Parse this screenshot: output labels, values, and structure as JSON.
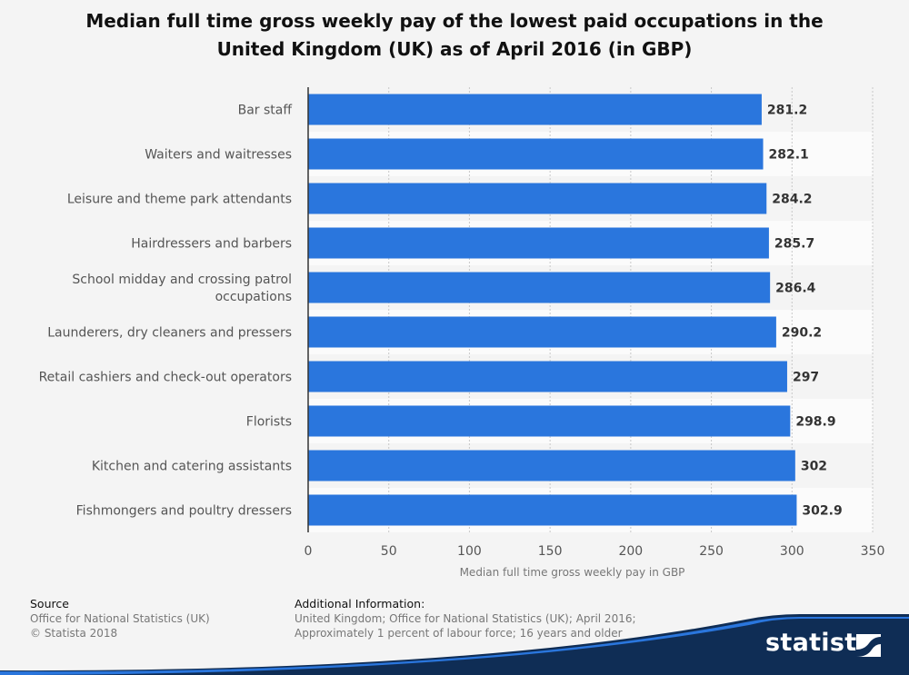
{
  "title": {
    "line1": "Median full time gross weekly pay of the lowest paid occupations in the",
    "line2": "United Kingdom (UK) as of April 2016 (in GBP)"
  },
  "chart_data": {
    "type": "bar",
    "orientation": "horizontal",
    "categories": [
      [
        "Bar staff"
      ],
      [
        "Waiters and waitresses"
      ],
      [
        "Leisure and theme park attendants"
      ],
      [
        "Hairdressers and barbers"
      ],
      [
        "School midday and crossing patrol",
        "occupations"
      ],
      [
        "Launderers, dry cleaners and pressers"
      ],
      [
        "Retail cashiers and check-out operators"
      ],
      [
        "Florists"
      ],
      [
        "Kitchen and catering assistants"
      ],
      [
        "Fishmongers and poultry dressers"
      ]
    ],
    "values": [
      281.2,
      282.1,
      284.2,
      285.7,
      286.4,
      290.2,
      297,
      298.9,
      302,
      302.9
    ],
    "value_labels": [
      "281.2",
      "282.1",
      "284.2",
      "285.7",
      "286.4",
      "290.2",
      "297",
      "298.9",
      "302",
      "302.9"
    ],
    "xlabel": "Median full time gross weekly pay in GBP",
    "xlim": [
      0,
      350
    ],
    "xticks": [
      0,
      50,
      100,
      150,
      200,
      250,
      300,
      350
    ],
    "grid": true,
    "bar_color": "#2a76dd",
    "legend": "none"
  },
  "footer": {
    "source_heading": "Source",
    "source_line1": "Office for National Statistics (UK)",
    "source_line2": "© Statista 2018",
    "info_heading": "Additional Information:",
    "info_line1": "United Kingdom; Office for National Statistics (UK); April 2016;",
    "info_line2": "Approximately 1 percent of labour force; 16 years and older"
  },
  "brand": {
    "name": "statista",
    "logo_icon": "statista-flag-icon",
    "colors": {
      "dark": "#0f2d55",
      "accent": "#2a76dd"
    }
  }
}
